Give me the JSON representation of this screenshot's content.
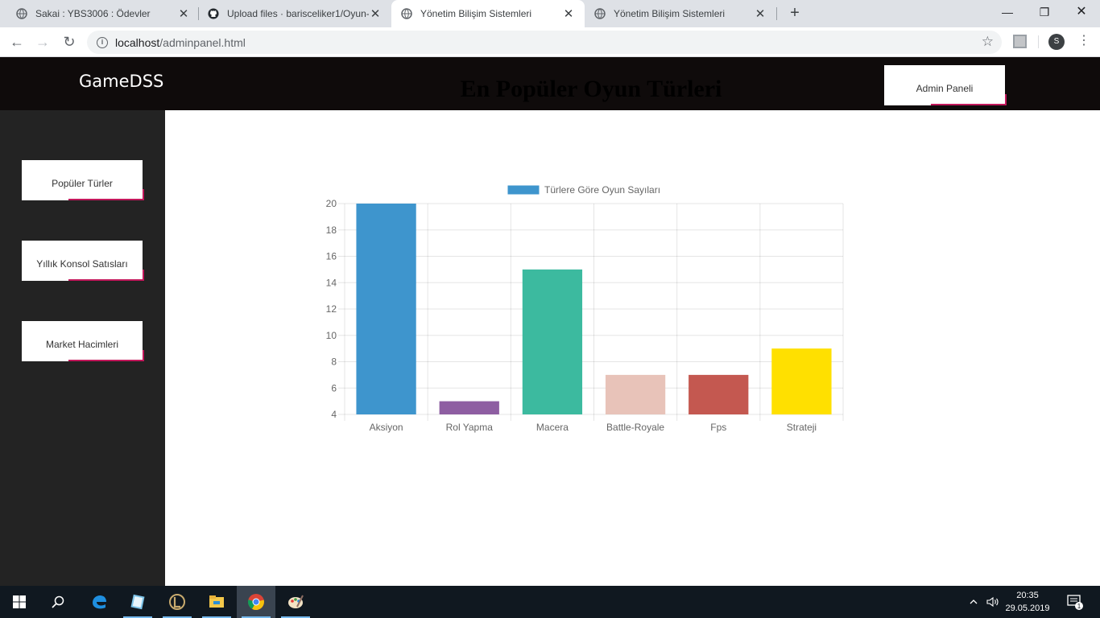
{
  "browser": {
    "tabs": [
      {
        "title": "Sakai : YBS3006 : Ödevler",
        "icon": "globe-icon"
      },
      {
        "title": "Upload files · barisceliker1/Oyun-",
        "icon": "github-icon"
      },
      {
        "title": "Yönetim Bilişim Sistemleri",
        "icon": "globe-icon",
        "active": true
      },
      {
        "title": "Yönetim Bilişim Sistemleri",
        "icon": "globe-icon"
      }
    ],
    "url_host": "localhost",
    "url_path": "/adminpanel.html",
    "profile_initial": "S"
  },
  "header": {
    "brand": "GameDSS",
    "admin_button": "Admin Paneli"
  },
  "sidebar": {
    "items": [
      {
        "label": "Popüler Türler"
      },
      {
        "label": "Yıllık Konsol Satısları"
      },
      {
        "label": "Market Hacimleri"
      }
    ]
  },
  "main": {
    "title": "En Popüler Oyun Türleri"
  },
  "chart_data": {
    "type": "bar",
    "categories": [
      "Aksiyon",
      "Rol Yapma",
      "Macera",
      "Battle-Royale",
      "Fps",
      "Strateji"
    ],
    "series": [
      {
        "name": "Türlere Göre Oyun Sayıları",
        "values": [
          20,
          5,
          15,
          7,
          7,
          9
        ]
      }
    ],
    "colors": [
      "#3e95cd",
      "#8e5ea2",
      "#3cba9f",
      "#e8c3b9",
      "#c45850",
      "#ffe000"
    ],
    "ylim": [
      4,
      20
    ],
    "yticks": [
      4,
      6,
      8,
      10,
      12,
      14,
      16,
      18,
      20
    ],
    "legend": "top",
    "grid": true
  },
  "taskbar": {
    "time": "20:35",
    "date": "29.05.2019",
    "notification_count": "1"
  }
}
